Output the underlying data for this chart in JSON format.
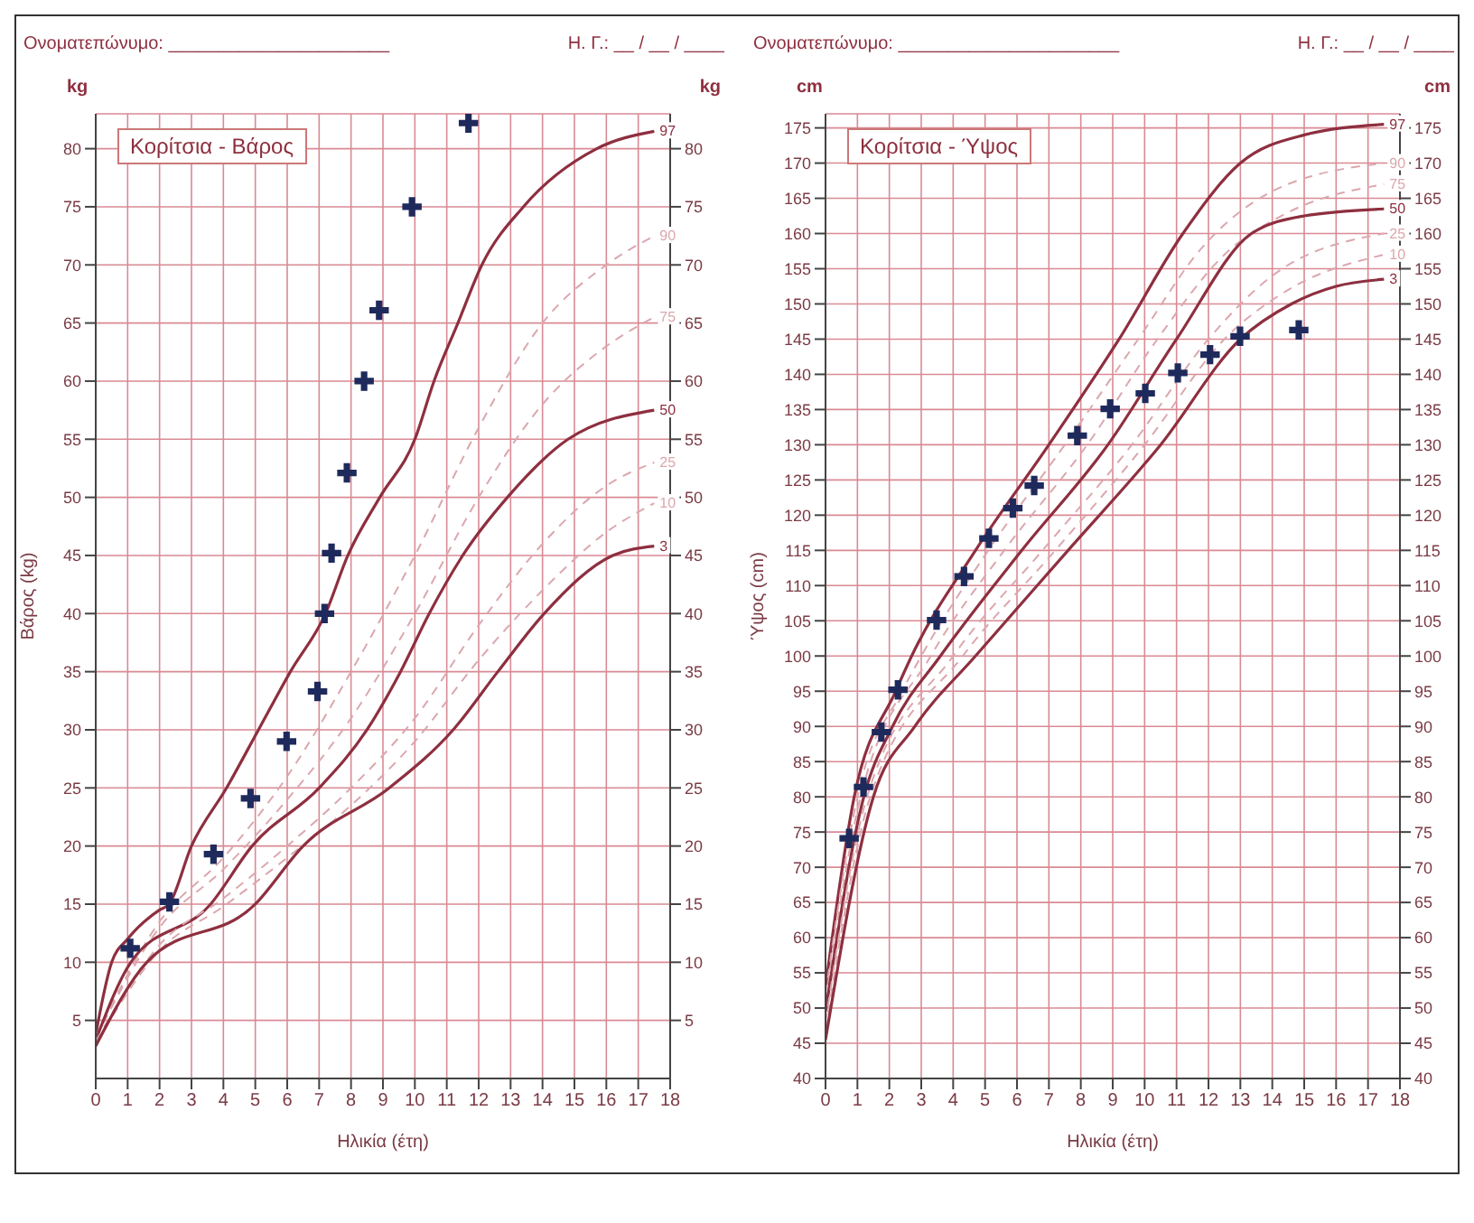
{
  "chart_data": [
    {
      "type": "line",
      "title": "Κορίτσια - Βάρος",
      "xlabel": "Ηλικία (έτη)",
      "ylabel": "Βάρος (kg)",
      "y2label": "kg",
      "annotations": [
        "Ονοματεπώνυμο: ______________________",
        "Η. Γ.: __ / __ / ____",
        "kg"
      ],
      "xlim": [
        0,
        18
      ],
      "xticks": [
        0,
        1,
        2,
        3,
        4,
        5,
        6,
        7,
        8,
        9,
        10,
        11,
        12,
        13,
        14,
        15,
        16,
        17,
        18
      ],
      "ylim": [
        0,
        83
      ],
      "yticks": [
        5,
        10,
        15,
        20,
        25,
        30,
        35,
        40,
        45,
        50,
        55,
        60,
        65,
        70,
        75,
        80
      ],
      "y2lim": [
        0,
        83
      ],
      "y2ticks": [
        5,
        10,
        15,
        20,
        25,
        30,
        35,
        40,
        45,
        50,
        55,
        60,
        65,
        70,
        75,
        80
      ],
      "grid": true,
      "legend": false,
      "series": [
        {
          "name": "97",
          "color": "#8e2f3f",
          "line_style": "solid",
          "x": [
            0,
            0.5,
            1,
            2,
            2.3,
            3,
            4.1,
            5.1,
            6.1,
            7.2,
            7.9,
            8.9,
            10,
            10.6,
            11.35,
            12.1,
            13.4,
            15.7,
            17.5
          ],
          "values": [
            3.8,
            10,
            12,
            14.5,
            15,
            20,
            25,
            30,
            35,
            40,
            45,
            50,
            55,
            60,
            65,
            70,
            75,
            80,
            81.5
          ]
        },
        {
          "name": "90",
          "color": "#dba7ae",
          "line_style": "dashed",
          "x": [
            0,
            2,
            4,
            6,
            8,
            10,
            12,
            14,
            16,
            17.5
          ],
          "values": [
            3.6,
            13.5,
            19,
            26,
            35,
            45,
            56,
            65,
            70,
            72.5
          ]
        },
        {
          "name": "75",
          "color": "#dba7ae",
          "line_style": "dashed",
          "x": [
            0,
            2,
            4,
            6,
            8,
            10,
            12,
            14,
            16,
            17.5
          ],
          "values": [
            3.5,
            13,
            18,
            24,
            31,
            40,
            50,
            58,
            63,
            65.5
          ]
        },
        {
          "name": "50",
          "color": "#8e2f3f",
          "line_style": "solid",
          "x": [
            0,
            1.1,
            3.6,
            4.9,
            7,
            8.5,
            9.55,
            10.45,
            11.5,
            12.9,
            14.8,
            17.5
          ],
          "values": [
            3.3,
            10,
            15,
            20,
            25,
            30,
            35,
            40,
            45,
            50,
            55,
            57.5
          ]
        },
        {
          "name": "25",
          "color": "#dba7ae",
          "line_style": "dashed",
          "x": [
            0,
            2,
            4,
            6,
            8,
            10,
            12,
            14,
            16,
            17.5
          ],
          "values": [
            3.2,
            11.5,
            15.5,
            20,
            25,
            31,
            39,
            46,
            51,
            53
          ]
        },
        {
          "name": "10",
          "color": "#dba7ae",
          "line_style": "dashed",
          "x": [
            0,
            2,
            4,
            6,
            8,
            10,
            12,
            14,
            16,
            17.5
          ],
          "values": [
            3,
            11,
            14.8,
            19,
            23.5,
            29,
            36,
            42,
            47,
            49.5
          ]
        },
        {
          "name": "3",
          "color": "#8e2f3f",
          "line_style": "solid",
          "x": [
            0,
            1.6,
            5,
            6.5,
            9.2,
            11.2,
            12.6,
            14.05,
            16.2,
            17.5
          ],
          "values": [
            2.8,
            10,
            15,
            20,
            25,
            30,
            35,
            40,
            45,
            45.8
          ]
        },
        {
          "type": "scatter",
          "color": "#1f2a5c",
          "marker": "cross",
          "x": [
            1.08,
            2.31,
            3.69,
            4.85,
            5.98,
            6.95,
            7.17,
            7.39,
            7.87,
            8.41,
            8.88,
            9.91,
            11.68
          ],
          "values": [
            11.2,
            15.2,
            19.3,
            24.1,
            29,
            33.3,
            40,
            45.2,
            52.1,
            60,
            66.1,
            75,
            82.2
          ]
        }
      ]
    },
    {
      "type": "line",
      "title": "Κορίτσια - Ύψος",
      "xlabel": "Ηλικία (έτη)",
      "ylabel": "Ύψος (cm)",
      "y2label": "cm",
      "annotations": [
        "Ονοματεπώνυμο: ______________________",
        "Η. Γ.: __ / __ / ____",
        "cm"
      ],
      "xlim": [
        0,
        18
      ],
      "xticks": [
        0,
        1,
        2,
        3,
        4,
        5,
        6,
        7,
        8,
        9,
        10,
        11,
        12,
        13,
        14,
        15,
        16,
        17,
        18
      ],
      "ylim": [
        40,
        177
      ],
      "yticks": [
        40,
        45,
        50,
        55,
        60,
        65,
        70,
        75,
        80,
        85,
        90,
        95,
        100,
        105,
        110,
        115,
        120,
        125,
        130,
        135,
        140,
        145,
        150,
        155,
        160,
        165,
        170,
        175
      ],
      "y2lim": [
        40,
        177
      ],
      "y2ticks": [
        40,
        45,
        50,
        55,
        60,
        65,
        70,
        75,
        80,
        85,
        90,
        95,
        100,
        105,
        110,
        115,
        120,
        125,
        130,
        135,
        140,
        145,
        150,
        155,
        160,
        165,
        170,
        175
      ],
      "grid": true,
      "legend": false,
      "series": [
        {
          "name": "97",
          "color": "#8e2f3f",
          "line_style": "solid",
          "x": [
            0,
            0.9,
            2.2,
            2.7,
            4.7,
            7,
            9.2,
            11.2,
            13,
            15,
            17.5
          ],
          "values": [
            53,
            80,
            95,
            100,
            115,
            130,
            145,
            160,
            170,
            174,
            175.5
          ]
        },
        {
          "name": "90",
          "color": "#dba7ae",
          "line_style": "dashed",
          "x": [
            0,
            1,
            2.4,
            3,
            5.1,
            7.5,
            9.8,
            11.8,
            14,
            17.5
          ],
          "values": [
            52,
            80,
            95,
            100,
            115,
            130,
            145,
            158,
            166,
            170
          ]
        },
        {
          "name": "75",
          "color": "#dba7ae",
          "line_style": "dashed",
          "x": [
            0,
            1.1,
            3.3,
            5.6,
            8.2,
            10.4,
            12.5,
            14.5,
            17.5
          ],
          "values": [
            51,
            80,
            100,
            115,
            130,
            145,
            157,
            163,
            167
          ]
        },
        {
          "name": "50",
          "color": "#8e2f3f",
          "line_style": "solid",
          "x": [
            0,
            1.2,
            2.1,
            3.6,
            6.15,
            8.85,
            11,
            13.35,
            15,
            17.5
          ],
          "values": [
            49.5,
            80,
            90,
            100,
            115,
            130,
            145,
            160,
            162.5,
            163.5
          ]
        },
        {
          "name": "25",
          "color": "#dba7ae",
          "line_style": "dashed",
          "x": [
            0,
            1.3,
            4,
            6.8,
            9.6,
            12,
            14,
            17.5
          ],
          "values": [
            48,
            80,
            100,
            115,
            130,
            145,
            154,
            160
          ]
        },
        {
          "name": "10",
          "color": "#dba7ae",
          "line_style": "dashed",
          "x": [
            0,
            1.4,
            4.3,
            7.2,
            10,
            12.5,
            14.5,
            17.5
          ],
          "values": [
            47,
            80,
            100,
            115,
            130,
            145,
            152,
            157
          ]
        },
        {
          "name": "3",
          "color": "#8e2f3f",
          "line_style": "solid",
          "x": [
            0,
            1.5,
            2.8,
            4.7,
            7.6,
            10.5,
            13,
            14.6,
            16,
            17.5
          ],
          "values": [
            45.5,
            80,
            90,
            100,
            115,
            130,
            145,
            150,
            152.5,
            153.5
          ]
        },
        {
          "type": "scatter",
          "color": "#1f2a5c",
          "marker": "cross",
          "x": [
            0.74,
            1.19,
            1.75,
            2.27,
            3.48,
            4.34,
            5.12,
            5.87,
            6.54,
            7.89,
            8.92,
            10.02,
            11.04,
            12.05,
            12.99,
            14.83
          ],
          "values": [
            74.1,
            81.4,
            89.2,
            95.2,
            105.1,
            111.3,
            116.7,
            121,
            124.2,
            131.3,
            135.1,
            137.3,
            140.2,
            142.8,
            145.4,
            146.3
          ]
        }
      ]
    }
  ]
}
